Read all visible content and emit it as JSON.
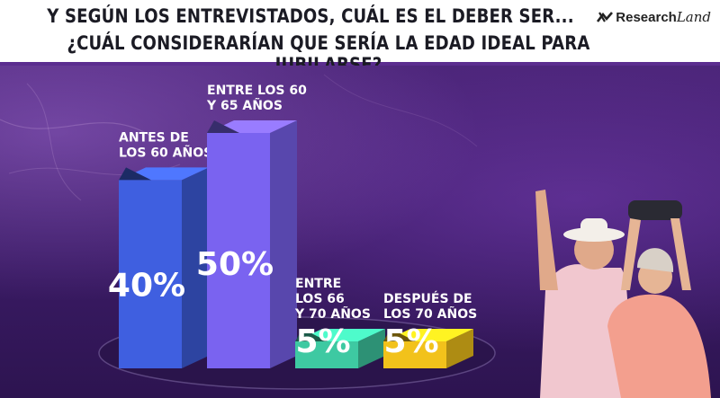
{
  "header": {
    "title_line1": "Y SEGÚN LOS ENTREVISTADOS, CUÁL ES EL DEBER SER...",
    "title_line2": "¿CUÁL CONSIDERARÍAN QUE SERÍA LA EDAD IDEAL PARA JUBILARSE?",
    "logo_text": "Research",
    "logo_script": "Land"
  },
  "chart_data": {
    "type": "bar",
    "categories": [
      [
        "ANTES DE",
        "LOS 60 AÑOS"
      ],
      [
        "ENTRE LOS 60",
        "Y 65 AÑOS"
      ],
      [
        "ENTRE",
        "LOS 66",
        "Y 70 AÑOS"
      ],
      [
        "DESPUÉS DE",
        "LOS 70 AÑOS"
      ]
    ],
    "values": [
      40,
      50,
      5,
      5
    ],
    "value_labels": [
      "40%",
      "50%",
      "5%",
      "5%"
    ],
    "colors": [
      "#3f5fe0",
      "#7a63f0",
      "#3ec9a2",
      "#f2c21b"
    ],
    "ylim": [
      0,
      50
    ]
  }
}
